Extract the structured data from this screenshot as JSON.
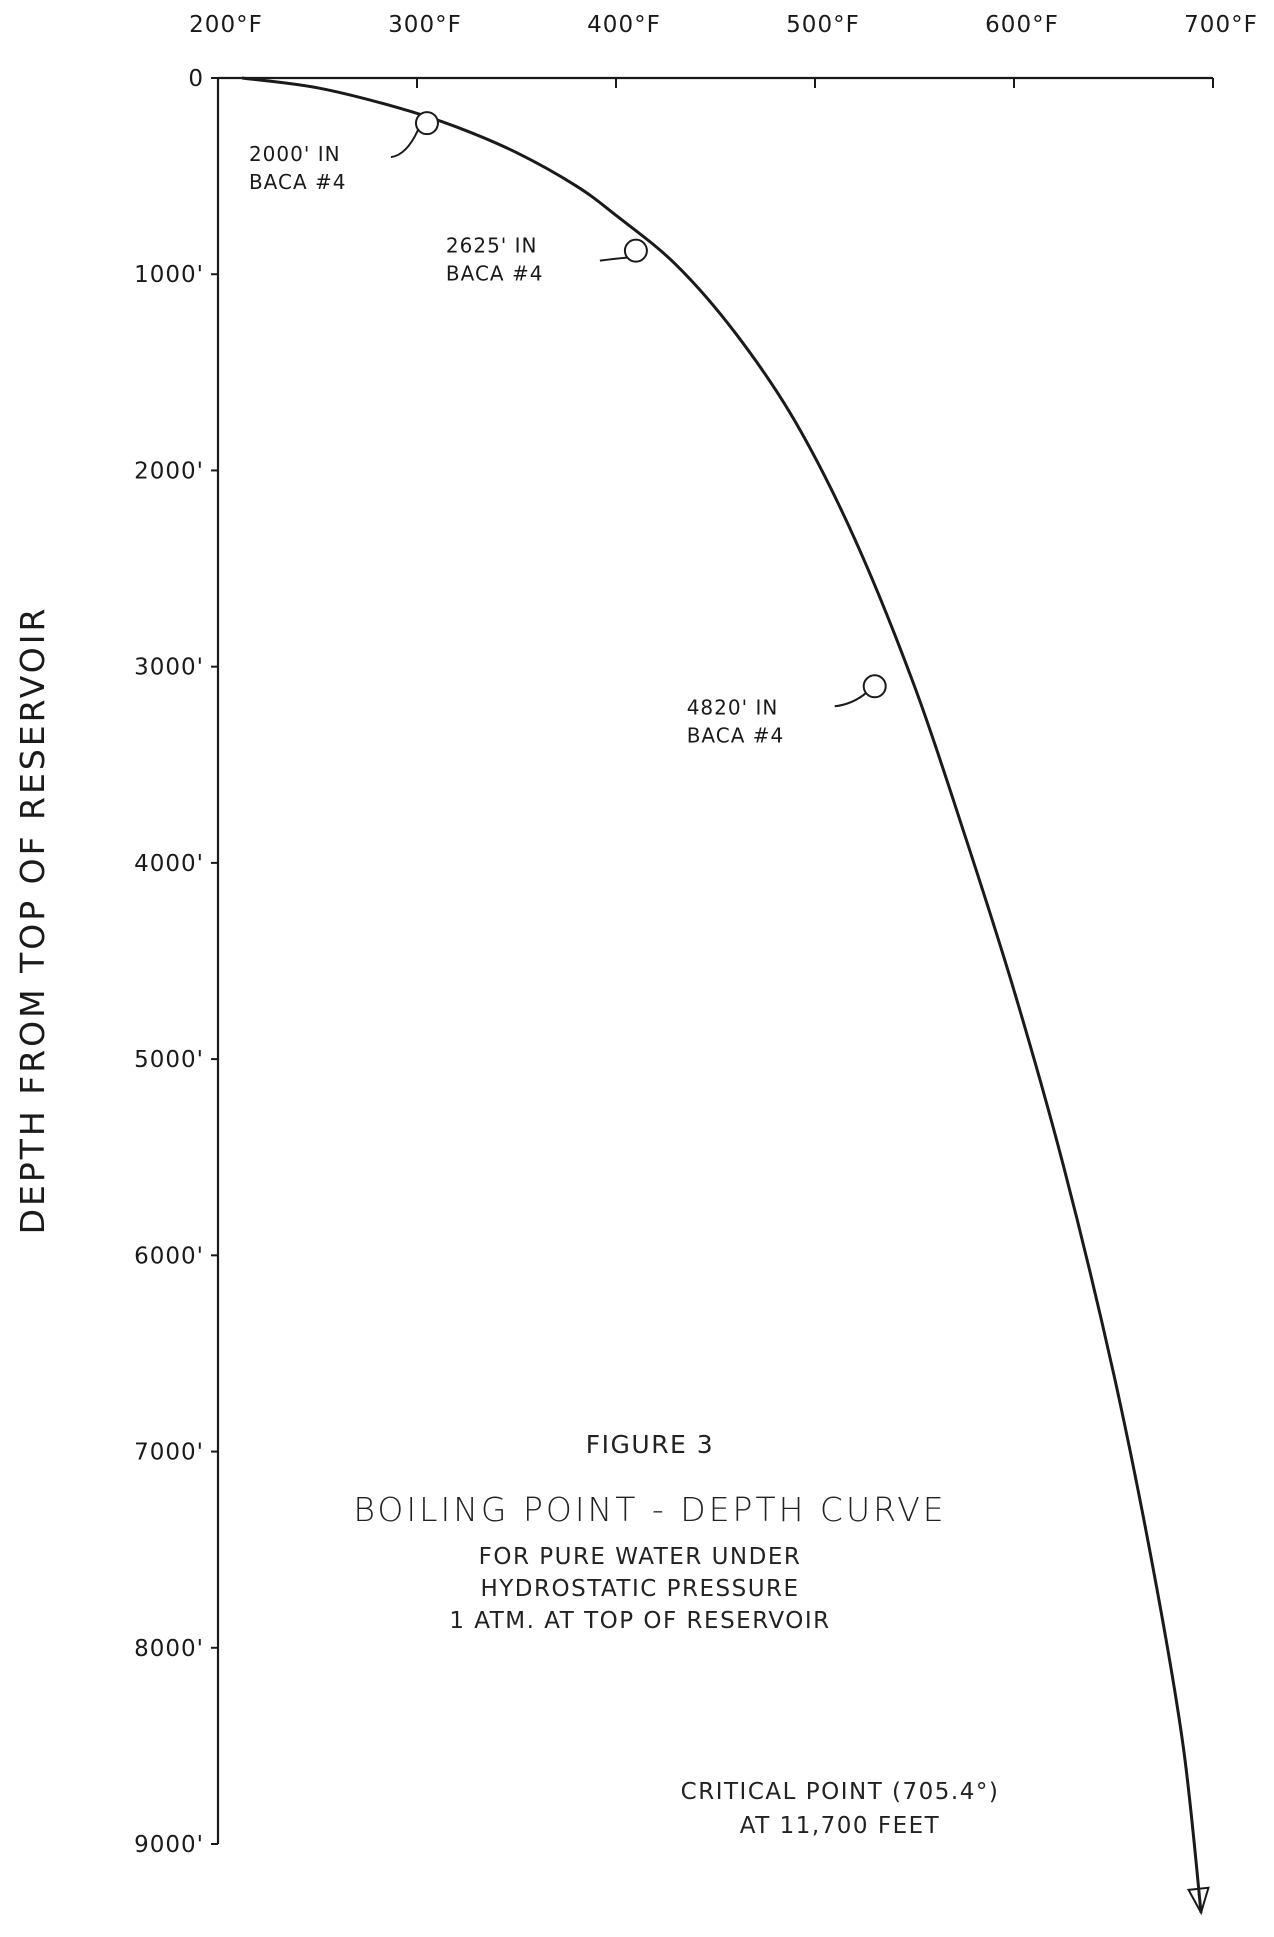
{
  "chart_data": {
    "type": "line",
    "title": "BOILING POINT - DEPTH CURVE",
    "figure_label": "FIGURE 3",
    "subtitle": [
      "FOR PURE WATER UNDER",
      "HYDROSTATIC PRESSURE",
      "1 ATM. AT TOP OF RESERVOIR"
    ],
    "note": [
      "CRITICAL POINT (705.4°)",
      "AT 11,700 FEET"
    ],
    "xlabel": "",
    "ylabel": "DEPTH FROM TOP OF RESERVOIR",
    "x_axis_position": "top",
    "y_inverted": true,
    "xlim": [
      200,
      700
    ],
    "ylim": [
      0,
      9000
    ],
    "x_ticks": [
      200,
      300,
      400,
      500,
      600,
      700
    ],
    "x_tick_labels": [
      "200°F",
      "300°F",
      "400°F",
      "500°F",
      "600°F",
      "700°F"
    ],
    "y_ticks": [
      0,
      1000,
      2000,
      3000,
      4000,
      5000,
      6000,
      7000,
      8000,
      9000
    ],
    "y_tick_labels": [
      "0",
      "1000'",
      "2000'",
      "3000'",
      "4000'",
      "5000'",
      "6000'",
      "7000'",
      "8000'",
      "9000'"
    ],
    "grid": false,
    "series": [
      {
        "x": [
          212,
          250,
          290,
          320,
          350,
          380,
          400,
          430,
          460,
          490,
          520,
          550,
          575,
          600,
          625,
          650,
          670,
          685,
          694
        ],
        "y": [
          0,
          50,
          150,
          250,
          380,
          550,
          700,
          950,
          1300,
          1750,
          2350,
          3100,
          3850,
          4650,
          5550,
          6600,
          7600,
          8500,
          9350
        ]
      }
    ],
    "points": [
      {
        "x": 305,
        "y": 230,
        "label": [
          "2000' IN",
          "BACA #4"
        ]
      },
      {
        "x": 410,
        "y": 880,
        "label": [
          "2625' IN",
          "BACA #4"
        ]
      },
      {
        "x": 530,
        "y": 3100,
        "label": [
          "4820' IN",
          "BACA #4"
        ]
      }
    ]
  }
}
